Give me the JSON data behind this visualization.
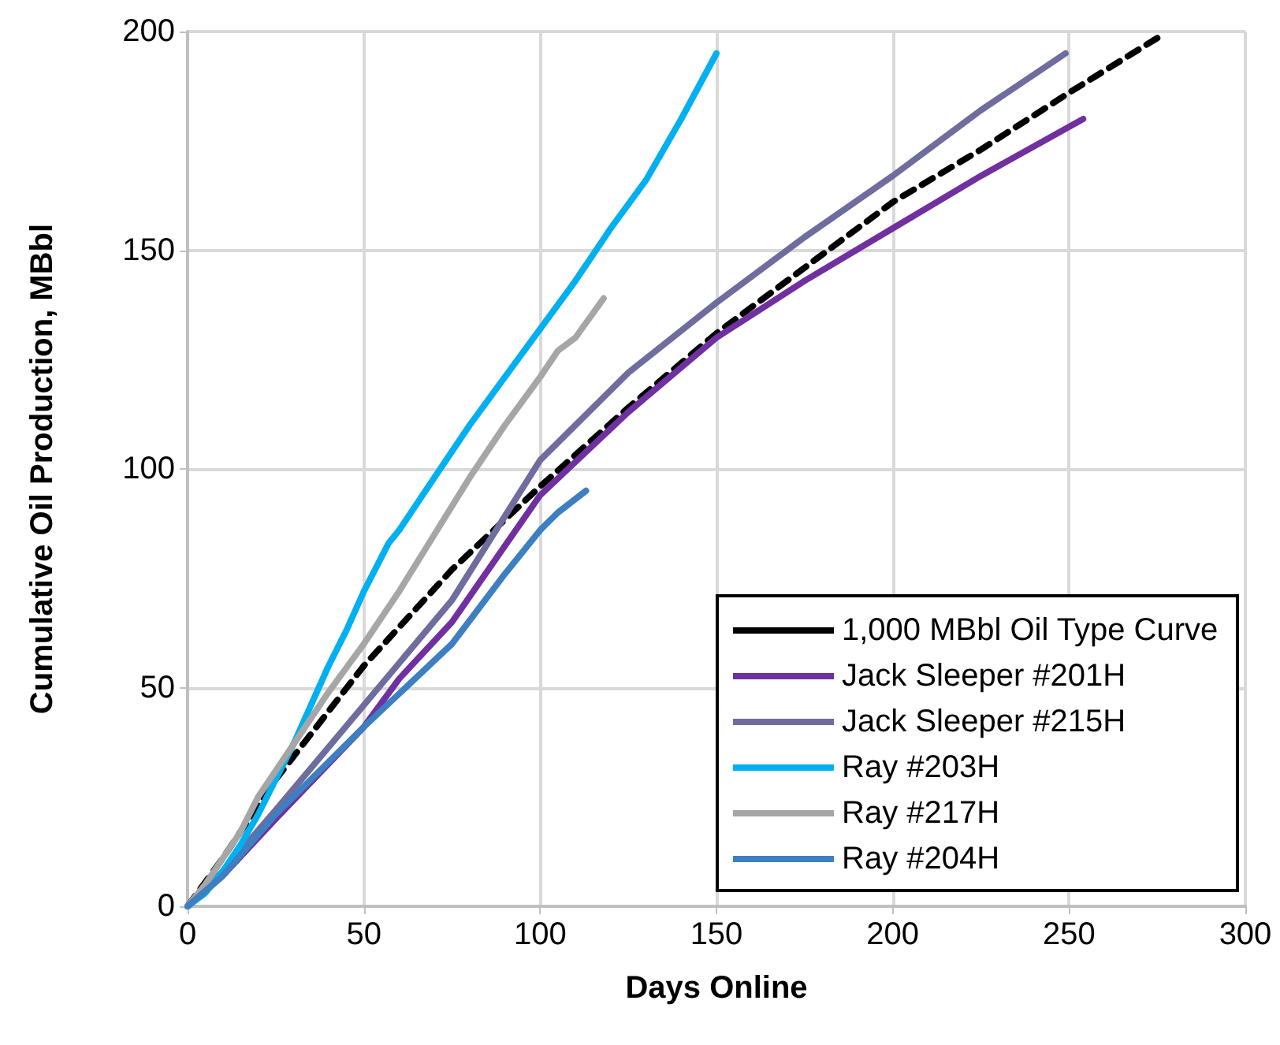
{
  "chart_data": {
    "type": "line",
    "xlabel": "Days Online",
    "ylabel": "Cumulative Oil Production, MBbl",
    "xlim": [
      0,
      300
    ],
    "xticks": [
      0,
      50,
      100,
      150,
      200,
      250,
      300
    ],
    "ylim": [
      0,
      200
    ],
    "yticks": [
      0,
      50,
      100,
      150,
      200
    ],
    "grid": true,
    "legend": "bottom right",
    "marker": "none",
    "series": [
      {
        "name": "1,000 MBbl Oil Type Curve",
        "color": "#000000",
        "line_style": "dashed",
        "x": [
          0,
          10,
          25,
          50,
          75,
          100,
          125,
          150,
          175,
          200,
          225,
          250,
          276
        ],
        "values": [
          0,
          11,
          29,
          55,
          77,
          96,
          114,
          131,
          146,
          161,
          173,
          186,
          199
        ]
      },
      {
        "name": "Jack Sleeper #201H",
        "color": "#7030a0",
        "x": [
          0,
          10,
          25,
          50,
          60,
          75,
          100,
          125,
          150,
          175,
          200,
          225,
          254
        ],
        "values": [
          0,
          7,
          20,
          41,
          52,
          65,
          94,
          113,
          130,
          143,
          155,
          167,
          180
        ]
      },
      {
        "name": "Jack Sleeper #215H",
        "color": "#6f6c9e",
        "x": [
          0,
          10,
          25,
          50,
          75,
          100,
          125,
          150,
          175,
          200,
          220,
          225,
          249
        ],
        "values": [
          0,
          8,
          22,
          46,
          70,
          102,
          122,
          138,
          153,
          167,
          179,
          182,
          195
        ]
      },
      {
        "name": "Ray #203H",
        "color": "#00b0f0",
        "x": [
          0,
          5,
          10,
          15,
          20,
          30,
          40,
          45,
          50,
          57,
          60,
          70,
          80,
          90,
          100,
          110,
          120,
          130,
          140,
          150
        ],
        "values": [
          0,
          3,
          8,
          14,
          21,
          37,
          55,
          63,
          72,
          83,
          86,
          98,
          110,
          121,
          132,
          143,
          155,
          166,
          180,
          195
        ]
      },
      {
        "name": "Ray #217H",
        "color": "#a6a6a6",
        "x": [
          0,
          5,
          10,
          15,
          20,
          25,
          30,
          40,
          50,
          60,
          70,
          80,
          90,
          100,
          105,
          110,
          118
        ],
        "values": [
          0,
          5,
          11,
          17,
          25,
          31,
          37,
          49,
          60,
          72,
          85,
          98,
          110,
          121,
          127,
          130,
          139
        ]
      },
      {
        "name": "Ray #204H",
        "color": "#3d7fc1",
        "x": [
          0,
          10,
          25,
          50,
          75,
          90,
          100,
          105,
          113
        ],
        "values": [
          0,
          7,
          21,
          41,
          60,
          76,
          86,
          90,
          95
        ]
      }
    ]
  }
}
